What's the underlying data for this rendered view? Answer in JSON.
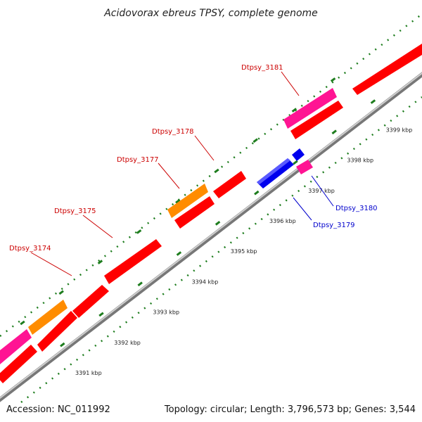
{
  "title": "Acidovorax ebreus TPSY, complete genome",
  "footer": {
    "accession": "Accession: NC_011992",
    "summary": "Topology: circular; Length: 3,796,573 bp; Genes: 3,544"
  },
  "colors": {
    "backbone": "#999999",
    "dotted_axis": "#1e7d1e",
    "forward_label": "#cc0000",
    "reverse_label": "#0000cc",
    "cds_red": "#ff0000",
    "cds_pink": "#ff1493",
    "cds_orange": "#ff8c00",
    "cds_blue": "#0000ee"
  },
  "scale_labels": [
    "3391 kbp",
    "3392 kbp",
    "3393 kbp",
    "3394 kbp",
    "3395 kbp",
    "3396 kbp",
    "3397 kbp",
    "3398 kbp",
    "3399 kbp"
  ],
  "gene_labels": {
    "forward": [
      "Dtpsy_3174",
      "Dtpsy_3175",
      "Dtpsy_3177",
      "Dtpsy_3178",
      "Dtpsy_3181"
    ],
    "reverse": [
      "Dtpsy_3179",
      "Dtpsy_3180"
    ]
  }
}
